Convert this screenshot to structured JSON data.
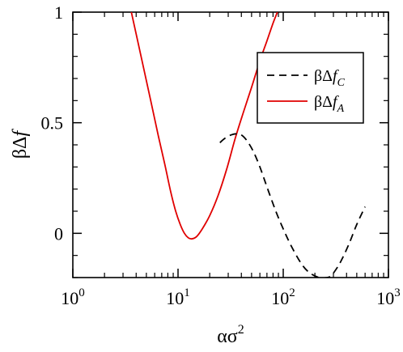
{
  "chart_data": {
    "type": "line",
    "xscale": "log",
    "xlim": [
      1,
      1000
    ],
    "ylim": [
      -0.2,
      1
    ],
    "xlabel": {
      "base": "ασ",
      "sup": "2"
    },
    "ylabel": {
      "prefix": "βΔ",
      "italic": "f"
    },
    "grid": false,
    "legend_position": "top-right",
    "x_ticks": [
      {
        "value": 1,
        "base": "10",
        "exp": "0"
      },
      {
        "value": 10,
        "base": "10",
        "exp": "1"
      },
      {
        "value": 100,
        "base": "10",
        "exp": "2"
      },
      {
        "value": 1000,
        "base": "10",
        "exp": "3"
      }
    ],
    "y_ticks": [
      {
        "value": 0,
        "label": "0"
      },
      {
        "value": 0.5,
        "label": "0.5"
      },
      {
        "value": 1,
        "label": "1"
      }
    ],
    "series": [
      {
        "key": "fA",
        "legend_prefix": "βΔ",
        "legend_italic": "f",
        "legend_sub": "A",
        "color": "#e00000",
        "dash": "solid",
        "x": [
          3.6,
          4.5,
          5.5,
          6.5,
          7.5,
          8.5,
          9.5,
          10.5,
          11.5,
          12.5,
          13.5,
          15,
          17,
          20,
          24,
          29,
          35,
          42,
          50,
          60,
          70,
          80,
          88
        ],
        "y": [
          1.0,
          0.79,
          0.6,
          0.44,
          0.31,
          0.19,
          0.1,
          0.04,
          0.0,
          -0.02,
          -0.025,
          -0.015,
          0.02,
          0.08,
          0.17,
          0.29,
          0.43,
          0.55,
          0.66,
          0.78,
          0.87,
          0.95,
          1.0
        ]
      },
      {
        "key": "fC",
        "legend_prefix": "βΔ",
        "legend_italic": "f",
        "legend_sub": "C",
        "color": "#000000",
        "dash": "dashed",
        "x": [
          25,
          28,
          32,
          36,
          40,
          45,
          52,
          60,
          70,
          85,
          100,
          120,
          150,
          180,
          220,
          260,
          280,
          300,
          350,
          420,
          500,
          600
        ],
        "y": [
          0.41,
          0.43,
          0.445,
          0.45,
          0.445,
          0.42,
          0.37,
          0.3,
          0.21,
          0.1,
          0.02,
          -0.06,
          -0.14,
          -0.18,
          -0.2,
          -0.2,
          -0.195,
          -0.18,
          -0.13,
          -0.05,
          0.04,
          0.12
        ]
      }
    ]
  }
}
